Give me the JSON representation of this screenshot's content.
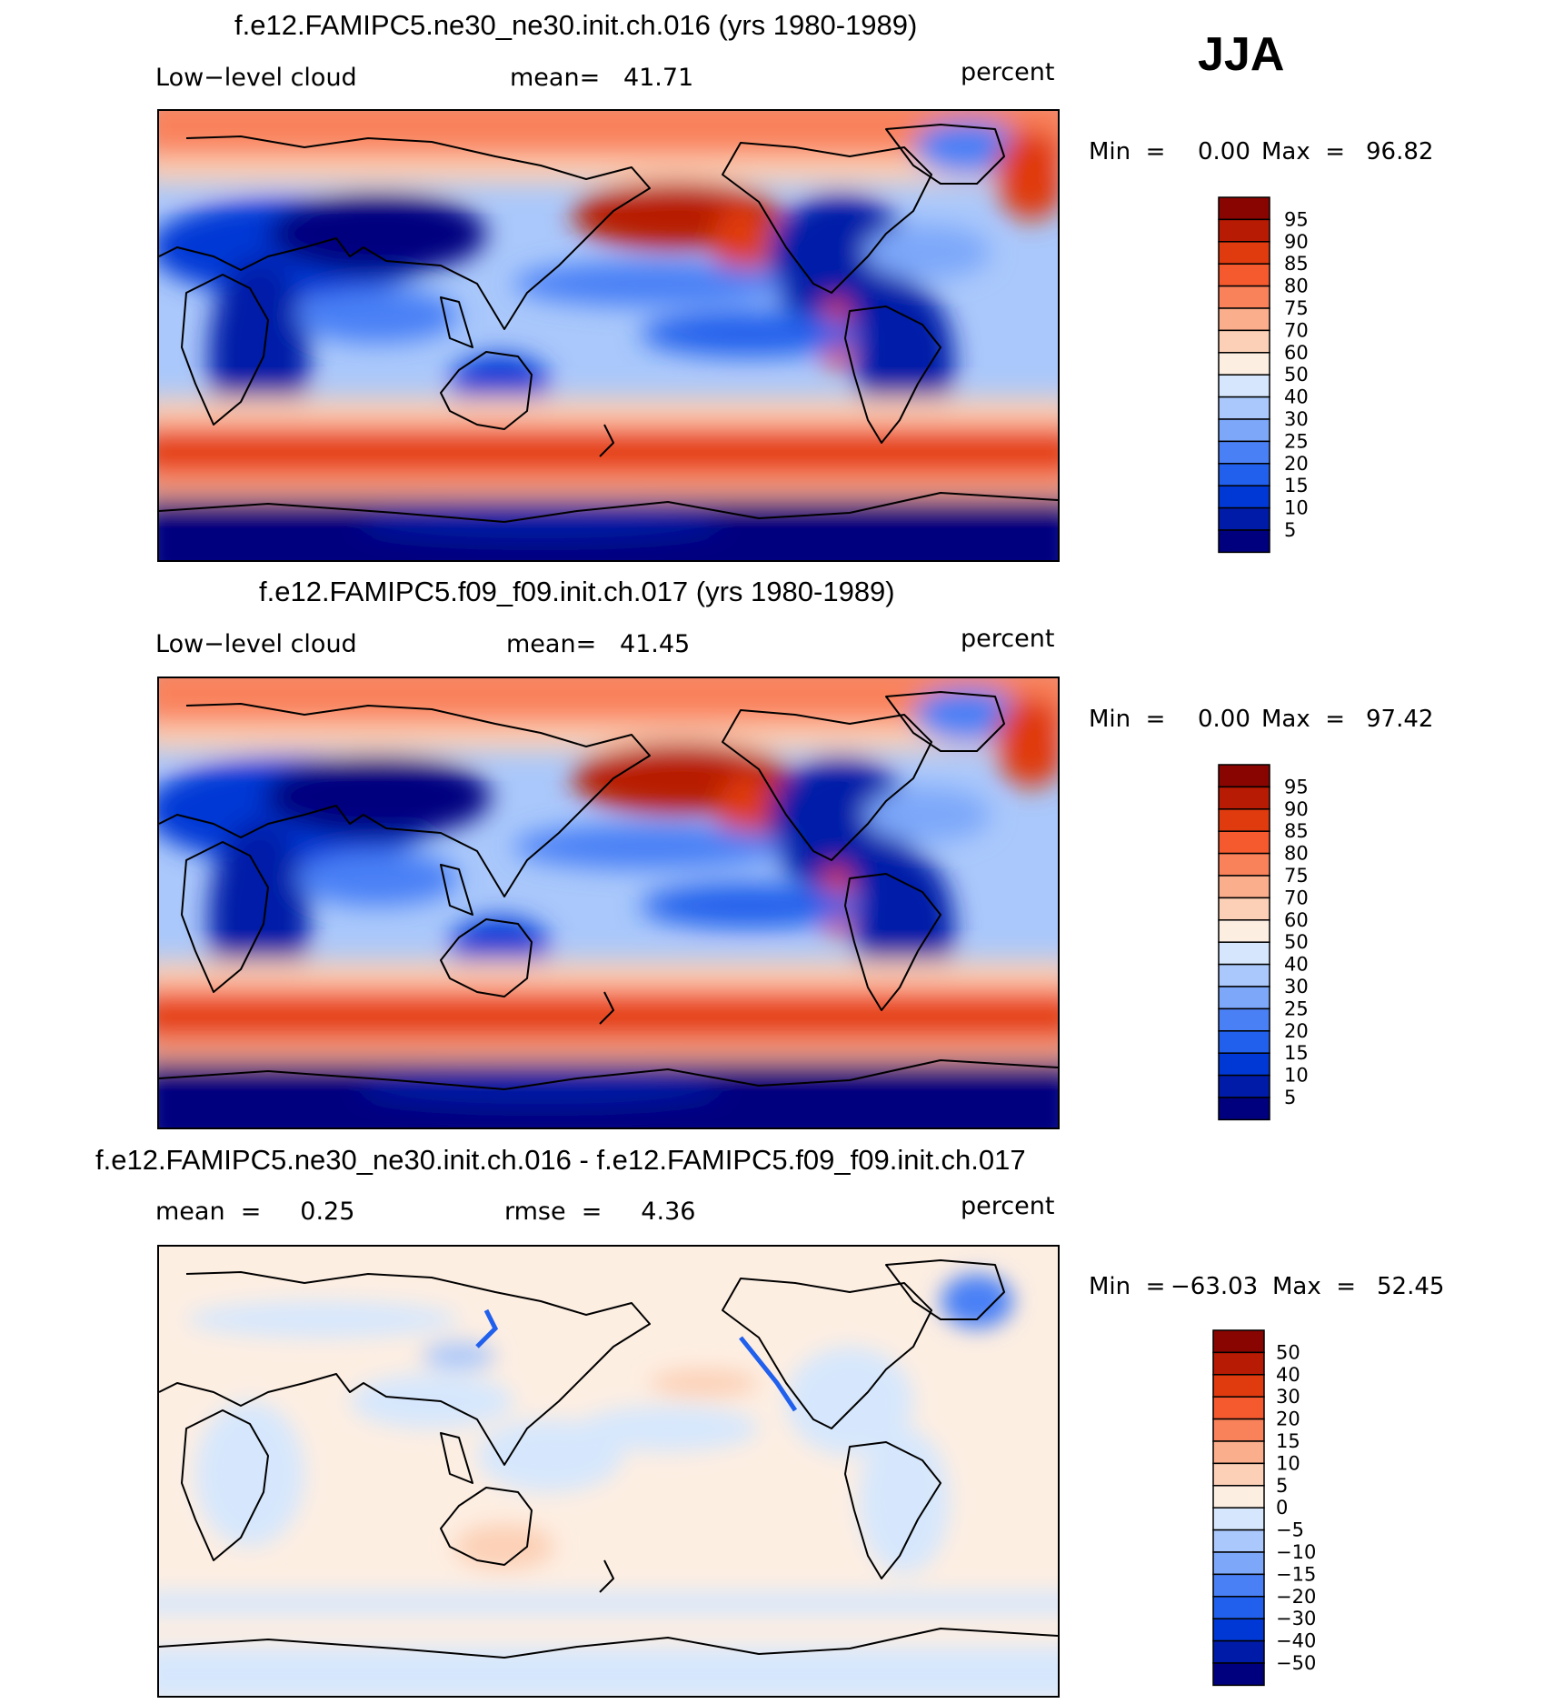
{
  "season": "JJA",
  "colors": {
    "seq": [
      "#00007f",
      "#001ba8",
      "#0038d6",
      "#2160ec",
      "#4a80f6",
      "#7da8fa",
      "#aac8fb",
      "#d6e7fd",
      "#fdeee2",
      "#fcd0b6",
      "#fbae8b",
      "#f9825b",
      "#f55a2f",
      "#e03a0f",
      "#b81b04",
      "#890502"
    ],
    "diff": [
      "#00007f",
      "#001ba8",
      "#0038d6",
      "#2160ec",
      "#4a80f6",
      "#7da8fa",
      "#aac8fb",
      "#d6e7fd",
      "#fdeee2",
      "#fcd0b6",
      "#fbae8b",
      "#f9825b",
      "#f55a2f",
      "#e03a0f",
      "#b81b04",
      "#890502"
    ]
  },
  "chart_data": [
    {
      "type": "heatmap",
      "title": "f.e12.FAMIPC5.ne30_ne30.init.ch.016 (yrs 1980-1989)",
      "left_label": "Low−level cloud",
      "center_label": "mean=   41.71",
      "units": "percent",
      "min_label": "Min  =",
      "min_value": "0.00",
      "max_label": "Max  =",
      "max_value": "96.82",
      "colorbar_levels": [
        "95",
        "90",
        "85",
        "80",
        "75",
        "70",
        "60",
        "50",
        "40",
        "30",
        "25",
        "20",
        "15",
        "10",
        "5"
      ]
    },
    {
      "type": "heatmap",
      "title": "f.e12.FAMIPC5.f09_f09.init.ch.017 (yrs 1980-1989)",
      "left_label": "Low−level cloud",
      "center_label": "mean=   41.45",
      "units": "percent",
      "min_label": "Min  =",
      "min_value": "0.00",
      "max_label": "Max  =",
      "max_value": "97.42",
      "colorbar_levels": [
        "95",
        "90",
        "85",
        "80",
        "75",
        "70",
        "60",
        "50",
        "40",
        "30",
        "25",
        "20",
        "15",
        "10",
        "5"
      ]
    },
    {
      "type": "heatmap",
      "title": "f.e12.FAMIPC5.ne30_ne30.init.ch.016 - f.e12.FAMIPC5.f09_f09.init.ch.017",
      "left_label": "mean  =     0.25",
      "center_label": "rmse  =     4.36",
      "units": "percent",
      "min_label": "Min  =",
      "min_value": "−63.03",
      "max_label": "Max  =",
      "max_value": "52.45",
      "colorbar_levels": [
        "50",
        "40",
        "30",
        "20",
        "15",
        "10",
        "5",
        "0",
        "−5",
        "−10",
        "−15",
        "−20",
        "−30",
        "−40",
        "−50"
      ]
    }
  ]
}
